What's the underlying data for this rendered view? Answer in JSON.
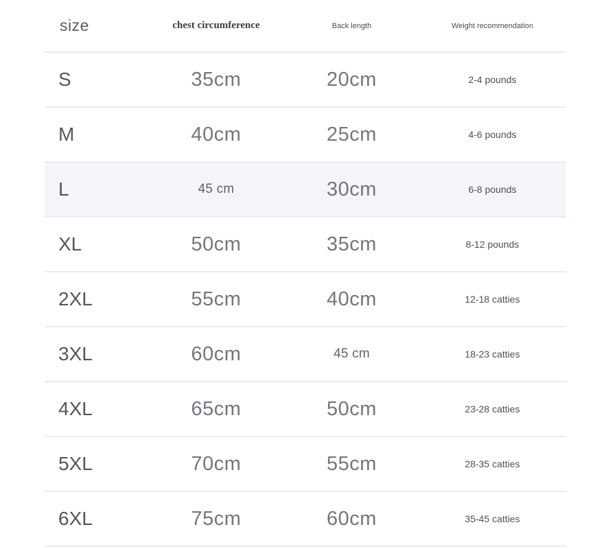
{
  "chart_data": {
    "type": "table",
    "columns": [
      "size",
      "chest circumference",
      "Back length",
      "Weight recommendation"
    ],
    "rows": [
      [
        "S",
        "35cm",
        "20cm",
        "2-4 pounds"
      ],
      [
        "M",
        "40cm",
        "25cm",
        "4-6 pounds"
      ],
      [
        "L",
        "45 cm",
        "30cm",
        "6-8 pounds"
      ],
      [
        "XL",
        "50cm",
        "35cm",
        "8-12 pounds"
      ],
      [
        "2XL",
        "55cm",
        "40cm",
        "12-18 catties"
      ],
      [
        "3XL",
        "60cm",
        "45 cm",
        "18-23 catties"
      ],
      [
        "4XL",
        "65cm",
        "50cm",
        "23-28 catties"
      ],
      [
        "5XL",
        "70cm",
        "55cm",
        "28-35 catties"
      ],
      [
        "6XL",
        "75cm",
        "60cm",
        "35-45 catties"
      ]
    ],
    "highlighted_row": "L",
    "colors": {
      "highlight_row_bg": "#f4f5f9",
      "divider": "#e9ebf2",
      "value_text": "#75757d",
      "header_text": "#3c3c45"
    }
  }
}
